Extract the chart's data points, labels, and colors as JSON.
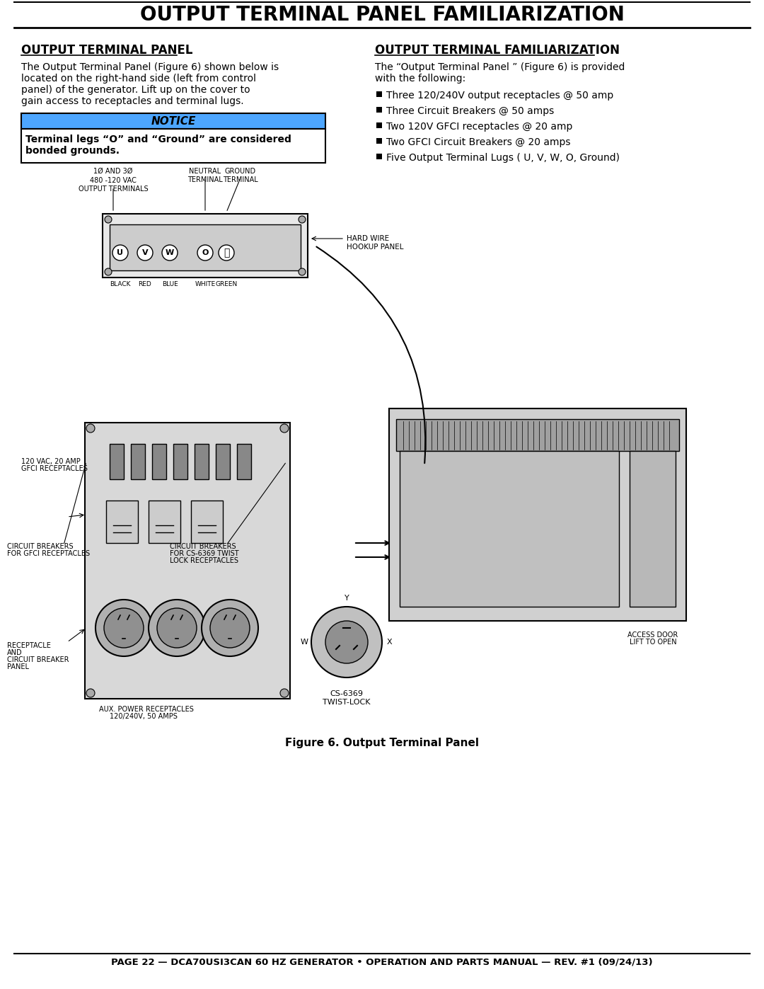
{
  "title": "OUTPUT TERMINAL PANEL FAMILIARIZATION",
  "left_heading": "OUTPUT TERMINAL PANEL",
  "left_para": "The Output Terminal Panel (Figure 6) shown below is located on the right-hand side (left from control panel) of the generator. Lift up on the cover to gain access to receptacles and terminal lugs.",
  "notice_label": "NOTICE",
  "notice_text": "Terminal legs “O” and “Ground” are considered bonded grounds.",
  "right_heading": "OUTPUT TERMINAL FAMILIARIZATION",
  "right_intro": "The “Output Terminal Panel ” (Figure 6) is provided with the following:",
  "bullet_items": [
    "Three 120/240V output receptacles @ 50 amp",
    "Three Circuit Breakers @ 50 amps",
    "Two 120V GFCI receptacles @ 20 amp",
    "Two GFCI Circuit Breakers @ 20 amps",
    "Five Output Terminal Lugs ( U, V, W, O, Ground)"
  ],
  "figure_caption": "Figure 6. Output Terminal Panel",
  "footer_text": "PAGE 22 — DCA70USI3CAN 60 HZ GENERATOR • OPERATION AND PARTS MANUAL — REV. #1 (09/24/13)",
  "bg_color": "#ffffff",
  "title_bg": "#ffffff",
  "notice_bg": "#4da6ff",
  "notice_border": "#000000",
  "header_line_color": "#000000",
  "footer_line_color": "#000000",
  "text_color": "#000000"
}
